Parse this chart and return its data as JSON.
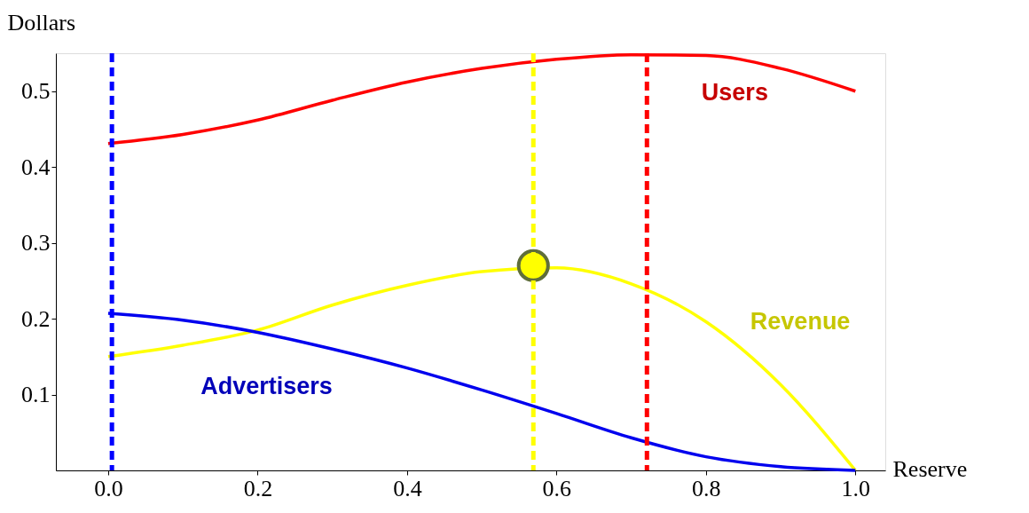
{
  "chart_data": {
    "type": "line",
    "xlabel": "Reserve",
    "ylabel": "Dollars",
    "x": [
      0,
      0.1,
      0.2,
      0.3,
      0.4,
      0.5,
      0.6,
      0.7,
      0.8,
      0.9,
      1.0
    ],
    "series": [
      {
        "name": "Users",
        "color": "#ff0000",
        "values": [
          0.431,
          0.443,
          0.462,
          0.488,
          0.512,
          0.53,
          0.542,
          0.548,
          0.547,
          0.53,
          0.5
        ]
      },
      {
        "name": "Revenue",
        "color": "#ffff00",
        "values": [
          0.15,
          0.165,
          0.185,
          0.218,
          0.244,
          0.262,
          0.267,
          0.246,
          0.196,
          0.113,
          0
        ]
      },
      {
        "name": "Advertisers",
        "color": "#0000ee",
        "values": [
          0.207,
          0.198,
          0.182,
          0.16,
          0.135,
          0.106,
          0.075,
          0.043,
          0.018,
          0.005,
          0
        ]
      },
      {
        "type": "scatter",
        "color": "#ffff00",
        "x": [
          0.569
        ],
        "values": [
          0.27
        ]
      }
    ],
    "xlim": [
      -0.07,
      1.04
    ],
    "ylim": [
      0,
      0.55
    ],
    "xticks": [
      {
        "value": 0,
        "label": "0.0"
      },
      0.2,
      0.4,
      0.6,
      0.8,
      {
        "value": 1,
        "label": "1.0"
      }
    ],
    "yticks": [
      0.1,
      0.2,
      0.3,
      0.4,
      0.5
    ],
    "ref_lines": [
      {
        "axis": "x",
        "value": 0.005,
        "color": "#0000ff",
        "line_style": "dashed"
      },
      {
        "axis": "x",
        "value": 0.569,
        "color": "#ffff00",
        "line_style": "dashed"
      },
      {
        "axis": "x",
        "value": 0.721,
        "color": "#ff0000",
        "line_style": "dashed"
      }
    ],
    "grid": false,
    "line_style": "solid"
  }
}
